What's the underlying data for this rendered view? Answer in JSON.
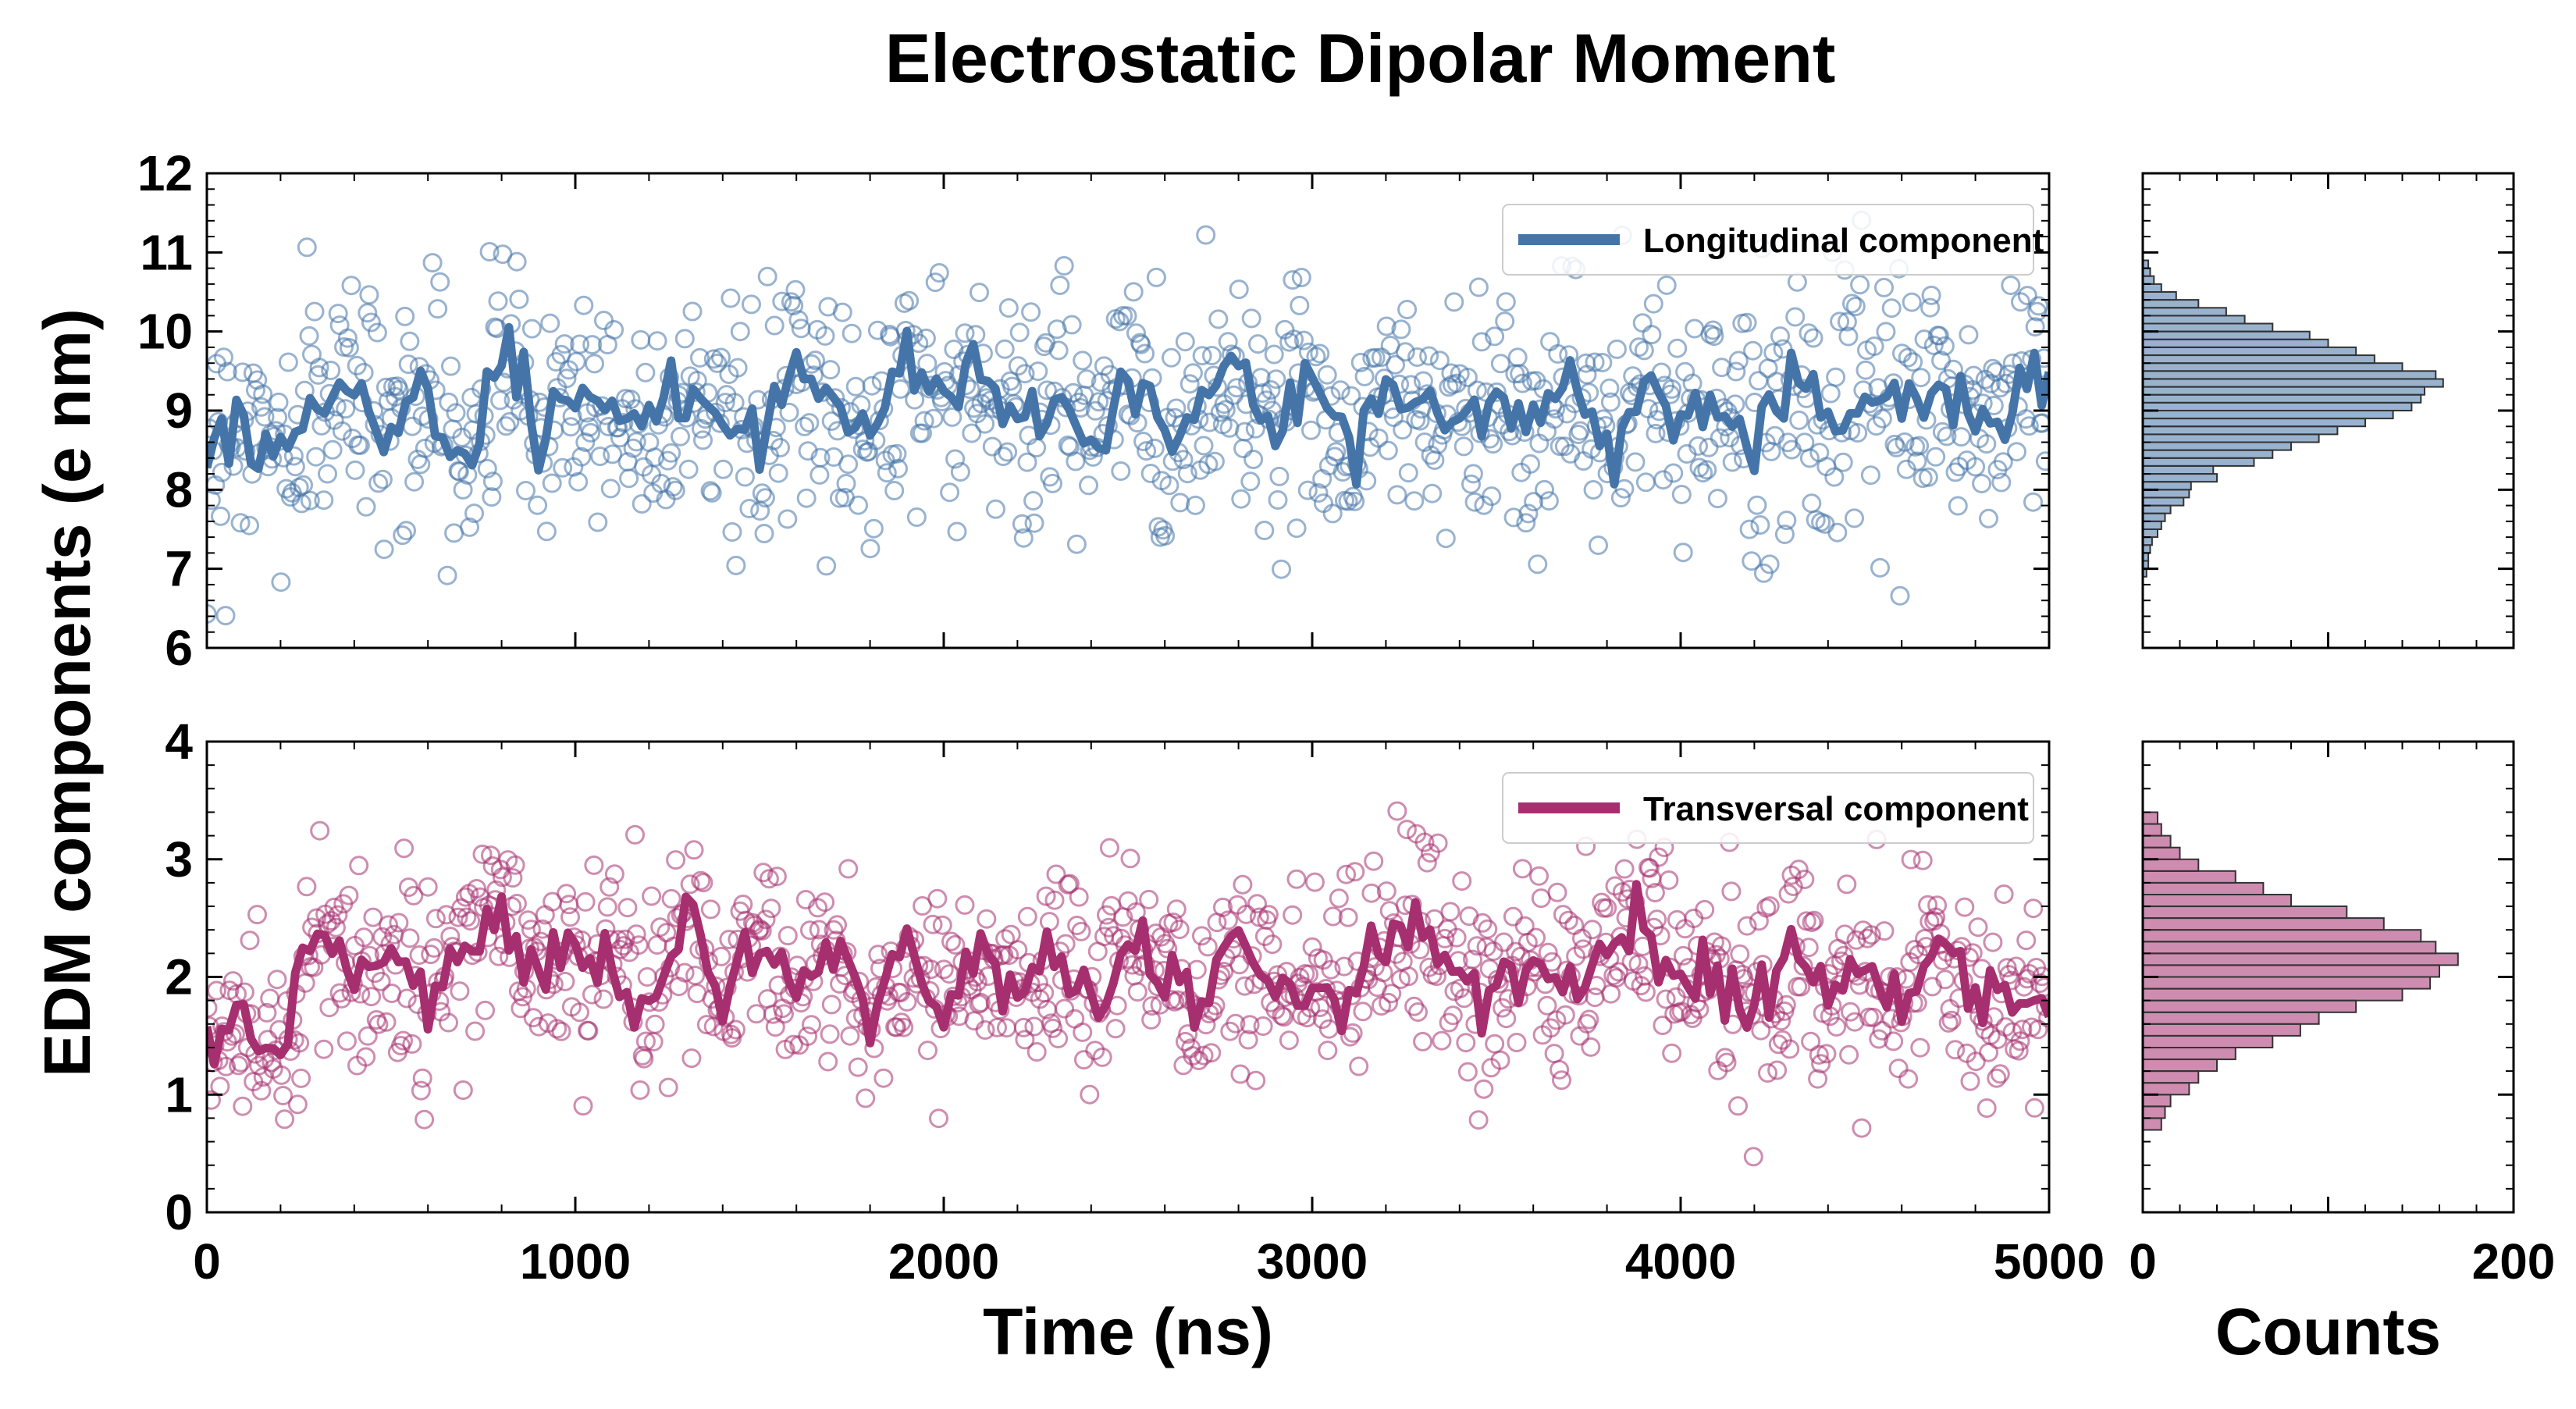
{
  "chart_data": {
    "type": "scatter",
    "title": "Electrostatic Dipolar Moment",
    "ylabel": "EDM components (e nm)",
    "xlabel": "Time (ns)",
    "hist_xlabel": "Counts",
    "colors": {
      "longitudinal": "#4575a8",
      "transversal": "#a62f6f"
    },
    "panels": [
      {
        "id": "top",
        "series_name": "Longitudinal component",
        "xlim": [
          0,
          5000
        ],
        "ylim": [
          6,
          12
        ],
        "yticks": [
          "6",
          "7",
          "8",
          "9",
          "10",
          "11",
          "12"
        ],
        "xticks": [],
        "legend_position": "top-right",
        "mean": 9.1,
        "trend_spread": 0.45,
        "scatter_spread": 0.75,
        "running_mean": [
          {
            "x": 0,
            "y": 8.5
          },
          {
            "x": 100,
            "y": 8.9
          },
          {
            "x": 200,
            "y": 8.4
          },
          {
            "x": 300,
            "y": 9.0
          },
          {
            "x": 400,
            "y": 9.4
          },
          {
            "x": 500,
            "y": 8.9
          },
          {
            "x": 600,
            "y": 9.2
          },
          {
            "x": 700,
            "y": 8.2
          },
          {
            "x": 800,
            "y": 9.8
          },
          {
            "x": 900,
            "y": 8.8
          },
          {
            "x": 1000,
            "y": 9.3
          },
          {
            "x": 1100,
            "y": 9.0
          },
          {
            "x": 1200,
            "y": 8.7
          },
          {
            "x": 1300,
            "y": 9.4
          },
          {
            "x": 1400,
            "y": 9.0
          },
          {
            "x": 1500,
            "y": 8.4
          },
          {
            "x": 1600,
            "y": 9.3
          },
          {
            "x": 1700,
            "y": 9.0
          },
          {
            "x": 1800,
            "y": 8.6
          },
          {
            "x": 1900,
            "y": 9.7
          },
          {
            "x": 2000,
            "y": 9.1
          },
          {
            "x": 2100,
            "y": 9.4
          },
          {
            "x": 2200,
            "y": 8.8
          },
          {
            "x": 2300,
            "y": 9.2
          },
          {
            "x": 2400,
            "y": 8.7
          },
          {
            "x": 2500,
            "y": 9.4
          },
          {
            "x": 2600,
            "y": 8.6
          },
          {
            "x": 2700,
            "y": 9.1
          },
          {
            "x": 2800,
            "y": 9.5
          },
          {
            "x": 2900,
            "y": 8.8
          },
          {
            "x": 3000,
            "y": 9.3
          },
          {
            "x": 3100,
            "y": 8.5
          },
          {
            "x": 3200,
            "y": 9.2
          },
          {
            "x": 3300,
            "y": 9.1
          },
          {
            "x": 3400,
            "y": 8.9
          },
          {
            "x": 3500,
            "y": 9.2
          },
          {
            "x": 3600,
            "y": 8.8
          },
          {
            "x": 3700,
            "y": 9.4
          },
          {
            "x": 3800,
            "y": 8.5
          },
          {
            "x": 3900,
            "y": 9.3
          },
          {
            "x": 4000,
            "y": 8.9
          },
          {
            "x": 4100,
            "y": 9.2
          },
          {
            "x": 4200,
            "y": 8.6
          },
          {
            "x": 4300,
            "y": 9.5
          },
          {
            "x": 4400,
            "y": 8.8
          },
          {
            "x": 4500,
            "y": 9.1
          },
          {
            "x": 4600,
            "y": 8.9
          },
          {
            "x": 4700,
            "y": 9.3
          },
          {
            "x": 4800,
            "y": 8.7
          },
          {
            "x": 4900,
            "y": 9.2
          },
          {
            "x": 5000,
            "y": 9.6
          }
        ],
        "histogram": {
          "bins": [
            {
              "y": 6.9,
              "count": 2
            },
            {
              "y": 7.0,
              "count": 3
            },
            {
              "y": 7.1,
              "count": 3
            },
            {
              "y": 7.2,
              "count": 4
            },
            {
              "y": 7.3,
              "count": 5
            },
            {
              "y": 7.4,
              "count": 8
            },
            {
              "y": 7.5,
              "count": 10
            },
            {
              "y": 7.6,
              "count": 12
            },
            {
              "y": 7.7,
              "count": 15
            },
            {
              "y": 7.8,
              "count": 22
            },
            {
              "y": 7.9,
              "count": 25
            },
            {
              "y": 8.0,
              "count": 26
            },
            {
              "y": 8.1,
              "count": 40
            },
            {
              "y": 8.2,
              "count": 38
            },
            {
              "y": 8.3,
              "count": 60
            },
            {
              "y": 8.4,
              "count": 70
            },
            {
              "y": 8.5,
              "count": 80
            },
            {
              "y": 8.6,
              "count": 95
            },
            {
              "y": 8.7,
              "count": 105
            },
            {
              "y": 8.8,
              "count": 120
            },
            {
              "y": 8.9,
              "count": 135
            },
            {
              "y": 9.0,
              "count": 145
            },
            {
              "y": 9.1,
              "count": 150
            },
            {
              "y": 9.2,
              "count": 152
            },
            {
              "y": 9.3,
              "count": 162
            },
            {
              "y": 9.4,
              "count": 158
            },
            {
              "y": 9.5,
              "count": 140
            },
            {
              "y": 9.6,
              "count": 125
            },
            {
              "y": 9.7,
              "count": 115
            },
            {
              "y": 9.8,
              "count": 100
            },
            {
              "y": 9.9,
              "count": 90
            },
            {
              "y": 10.0,
              "count": 70
            },
            {
              "y": 10.1,
              "count": 55
            },
            {
              "y": 10.2,
              "count": 45
            },
            {
              "y": 10.3,
              "count": 30
            },
            {
              "y": 10.4,
              "count": 18
            },
            {
              "y": 10.5,
              "count": 10
            },
            {
              "y": 10.6,
              "count": 6
            },
            {
              "y": 10.7,
              "count": 4
            },
            {
              "y": 10.8,
              "count": 3
            }
          ],
          "xlim": [
            0,
            200
          ],
          "xticks": [
            "0",
            "200"
          ]
        }
      },
      {
        "id": "bottom",
        "series_name": "Transversal component",
        "xlim": [
          0,
          5000
        ],
        "ylim": [
          0,
          4
        ],
        "yticks": [
          "0",
          "1",
          "2",
          "3",
          "4"
        ],
        "xticks": [
          "0",
          "1000",
          "2000",
          "3000",
          "4000",
          "5000"
        ],
        "legend_position": "top-right",
        "mean": 2.0,
        "trend_spread": 0.28,
        "scatter_spread": 0.45,
        "running_mean": [
          {
            "x": 0,
            "y": 1.5
          },
          {
            "x": 100,
            "y": 1.6
          },
          {
            "x": 200,
            "y": 1.4
          },
          {
            "x": 300,
            "y": 2.5
          },
          {
            "x": 400,
            "y": 2.0
          },
          {
            "x": 500,
            "y": 2.2
          },
          {
            "x": 600,
            "y": 1.9
          },
          {
            "x": 700,
            "y": 2.3
          },
          {
            "x": 800,
            "y": 2.6
          },
          {
            "x": 900,
            "y": 1.9
          },
          {
            "x": 1000,
            "y": 2.2
          },
          {
            "x": 1100,
            "y": 2.0
          },
          {
            "x": 1200,
            "y": 1.7
          },
          {
            "x": 1300,
            "y": 2.5
          },
          {
            "x": 1400,
            "y": 1.9
          },
          {
            "x": 1500,
            "y": 2.4
          },
          {
            "x": 1600,
            "y": 1.8
          },
          {
            "x": 1700,
            "y": 2.2
          },
          {
            "x": 1800,
            "y": 1.6
          },
          {
            "x": 1900,
            "y": 2.3
          },
          {
            "x": 2000,
            "y": 1.8
          },
          {
            "x": 2100,
            "y": 2.1
          },
          {
            "x": 2200,
            "y": 1.9
          },
          {
            "x": 2300,
            "y": 2.2
          },
          {
            "x": 2400,
            "y": 1.8
          },
          {
            "x": 2500,
            "y": 2.3
          },
          {
            "x": 2600,
            "y": 2.0
          },
          {
            "x": 2700,
            "y": 1.7
          },
          {
            "x": 2800,
            "y": 2.4
          },
          {
            "x": 2900,
            "y": 1.9
          },
          {
            "x": 3000,
            "y": 2.0
          },
          {
            "x": 3100,
            "y": 1.8
          },
          {
            "x": 3200,
            "y": 2.3
          },
          {
            "x": 3300,
            "y": 2.4
          },
          {
            "x": 3400,
            "y": 2.0
          },
          {
            "x": 3500,
            "y": 1.9
          },
          {
            "x": 3600,
            "y": 2.1
          },
          {
            "x": 3700,
            "y": 1.8
          },
          {
            "x": 3800,
            "y": 2.2
          },
          {
            "x": 3900,
            "y": 2.5
          },
          {
            "x": 4000,
            "y": 1.9
          },
          {
            "x": 4100,
            "y": 2.0
          },
          {
            "x": 4200,
            "y": 1.8
          },
          {
            "x": 4300,
            "y": 2.3
          },
          {
            "x": 4400,
            "y": 1.9
          },
          {
            "x": 4500,
            "y": 2.1
          },
          {
            "x": 4600,
            "y": 1.7
          },
          {
            "x": 4700,
            "y": 2.4
          },
          {
            "x": 4800,
            "y": 1.8
          },
          {
            "x": 4900,
            "y": 1.9
          },
          {
            "x": 5000,
            "y": 1.8
          }
        ],
        "histogram": {
          "bins": [
            {
              "y": 0.7,
              "count": 10
            },
            {
              "y": 0.8,
              "count": 12
            },
            {
              "y": 0.9,
              "count": 15
            },
            {
              "y": 1.0,
              "count": 25
            },
            {
              "y": 1.1,
              "count": 30
            },
            {
              "y": 1.2,
              "count": 40
            },
            {
              "y": 1.3,
              "count": 50
            },
            {
              "y": 1.4,
              "count": 70
            },
            {
              "y": 1.5,
              "count": 85
            },
            {
              "y": 1.6,
              "count": 95
            },
            {
              "y": 1.7,
              "count": 115
            },
            {
              "y": 1.8,
              "count": 140
            },
            {
              "y": 1.9,
              "count": 155
            },
            {
              "y": 2.0,
              "count": 160
            },
            {
              "y": 2.1,
              "count": 170
            },
            {
              "y": 2.2,
              "count": 158
            },
            {
              "y": 2.3,
              "count": 150
            },
            {
              "y": 2.4,
              "count": 130
            },
            {
              "y": 2.5,
              "count": 110
            },
            {
              "y": 2.6,
              "count": 80
            },
            {
              "y": 2.7,
              "count": 65
            },
            {
              "y": 2.8,
              "count": 50
            },
            {
              "y": 2.9,
              "count": 30
            },
            {
              "y": 3.0,
              "count": 20
            },
            {
              "y": 3.1,
              "count": 15
            },
            {
              "y": 3.2,
              "count": 10
            },
            {
              "y": 3.3,
              "count": 8
            }
          ],
          "xlim": [
            0,
            200
          ],
          "xticks": [
            "0",
            "200"
          ]
        }
      }
    ]
  }
}
